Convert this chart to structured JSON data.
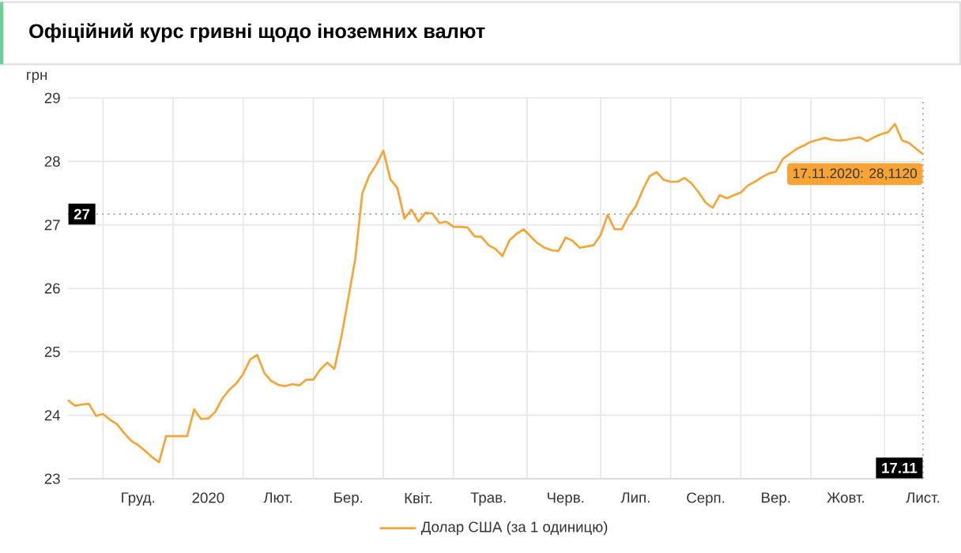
{
  "chart_data": {
    "type": "line",
    "title": "Офіційний курс гривні щодо іноземних валют",
    "ylabel": "грн",
    "categories": [
      null,
      null,
      null,
      null,
      null,
      null,
      null,
      null,
      null,
      null,
      "Груд.",
      null,
      null,
      null,
      null,
      null,
      null,
      null,
      null,
      null,
      "2020",
      null,
      null,
      null,
      null,
      null,
      null,
      null,
      null,
      null,
      "Лют.",
      null,
      null,
      null,
      null,
      null,
      null,
      null,
      null,
      null,
      "Бер.",
      null,
      null,
      null,
      null,
      null,
      null,
      null,
      null,
      null,
      "Квіт.",
      null,
      null,
      null,
      null,
      null,
      null,
      null,
      null,
      null,
      "Трав.",
      null,
      null,
      null,
      null,
      null,
      null,
      null,
      null,
      null,
      null,
      "Черв.",
      null,
      null,
      null,
      null,
      null,
      null,
      null,
      null,
      null,
      "Лип.",
      null,
      null,
      null,
      null,
      null,
      null,
      null,
      null,
      null,
      "Серп.",
      null,
      null,
      null,
      null,
      null,
      null,
      null,
      null,
      null,
      "Вер.",
      null,
      null,
      null,
      null,
      null,
      null,
      null,
      null,
      null,
      "Жовт.",
      null,
      null,
      null,
      null,
      null,
      null,
      null,
      null,
      null,
      null,
      "Лист."
    ],
    "ylim": [
      23,
      29
    ],
    "yticks": [
      23,
      24,
      25,
      26,
      27,
      28,
      29
    ],
    "grid": true,
    "legend": "bottom",
    "marker": "none",
    "line_style": "solid",
    "ref_lines": [
      {
        "axis": "y",
        "value": 27.17,
        "label": "27"
      }
    ],
    "annotations": [
      "17.11.2020: 28,1120",
      "17.11"
    ],
    "series": [
      {
        "name": "Долар США (за 1 одиницю)",
        "color": "#f7a434",
        "values": [
          24.24,
          24.15,
          24.17,
          24.18,
          23.99,
          24.02,
          23.93,
          23.86,
          23.72,
          23.6,
          23.53,
          23.44,
          23.34,
          23.26,
          23.67,
          23.67,
          23.67,
          23.67,
          24.09,
          23.94,
          23.95,
          24.05,
          24.26,
          24.4,
          24.5,
          24.65,
          24.88,
          24.95,
          24.67,
          24.54,
          24.48,
          24.46,
          24.49,
          24.47,
          24.56,
          24.56,
          24.72,
          24.83,
          24.73,
          25.23,
          25.84,
          26.47,
          27.5,
          27.78,
          27.95,
          28.17,
          27.72,
          27.58,
          27.1,
          27.24,
          27.05,
          27.19,
          27.18,
          27.03,
          27.05,
          26.97,
          26.97,
          26.96,
          26.82,
          26.81,
          26.68,
          26.62,
          26.51,
          26.76,
          26.86,
          26.93,
          26.82,
          26.71,
          26.64,
          26.6,
          26.59,
          26.8,
          26.75,
          26.64,
          26.66,
          26.68,
          26.84,
          27.16,
          26.93,
          26.93,
          27.14,
          27.29,
          27.55,
          27.77,
          27.83,
          27.71,
          27.68,
          27.68,
          27.74,
          27.65,
          27.51,
          27.35,
          27.27,
          27.47,
          27.42,
          27.47,
          27.51,
          27.62,
          27.68,
          27.75,
          27.81,
          27.84,
          28.04,
          28.12,
          28.2,
          28.25,
          28.31,
          28.34,
          28.37,
          28.34,
          28.33,
          28.34,
          28.36,
          28.38,
          28.32,
          28.38,
          28.43,
          28.46,
          28.59,
          28.33,
          28.29,
          28.2,
          28.112
        ]
      }
    ]
  }
}
